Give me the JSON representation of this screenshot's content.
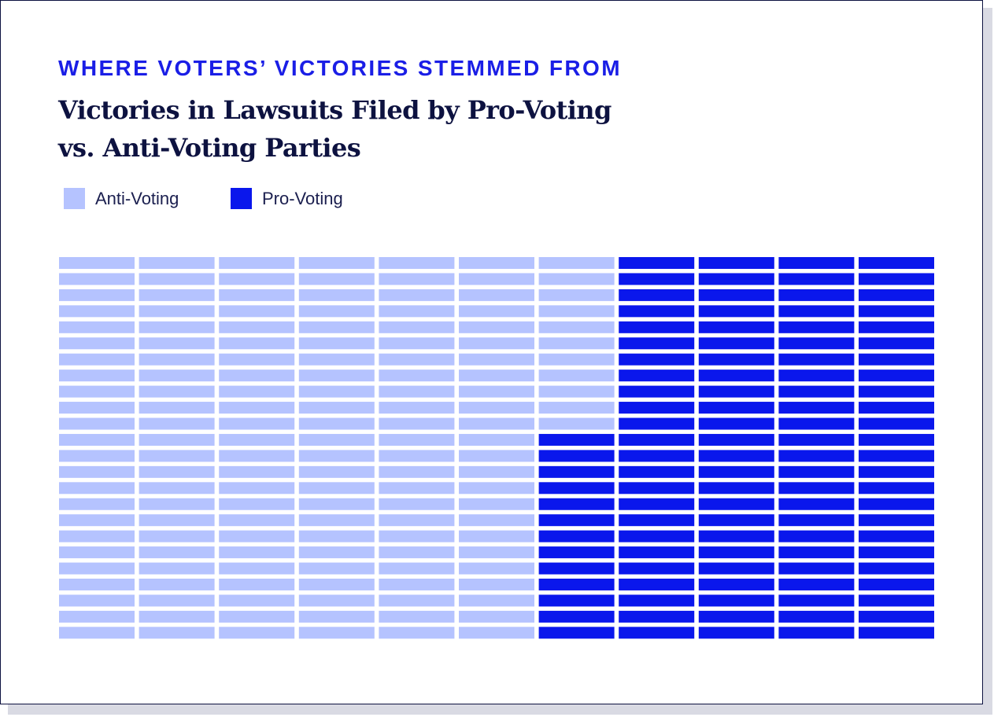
{
  "eyebrow": "WHERE VOTERS’ VICTORIES STEMMED FROM",
  "title_line1": "Victories in Lawsuits Filed by Pro-Voting",
  "title_line2": "vs. Anti-Voting Parties",
  "colors": {
    "anti_voting": "#b5c3ff",
    "pro_voting": "#0a17ec",
    "title": "#0d1240",
    "eyebrow": "#1a1ee6"
  },
  "legend": [
    {
      "label": "Anti-Voting",
      "color": "#b5c3ff"
    },
    {
      "label": "Pro-Voting",
      "color": "#0a17ec"
    }
  ],
  "chart_data": {
    "type": "waffle",
    "grid": {
      "columns": 11,
      "rows": 24,
      "fill_order": "column-major, left to right, top to bottom"
    },
    "total_cells": 264,
    "series": [
      {
        "name": "Anti-Voting",
        "values": [
          155
        ],
        "color": "#b5c3ff"
      },
      {
        "name": "Pro-Voting",
        "values": [
          109
        ],
        "color": "#0a17ec"
      }
    ],
    "legend_position": "top-left"
  }
}
